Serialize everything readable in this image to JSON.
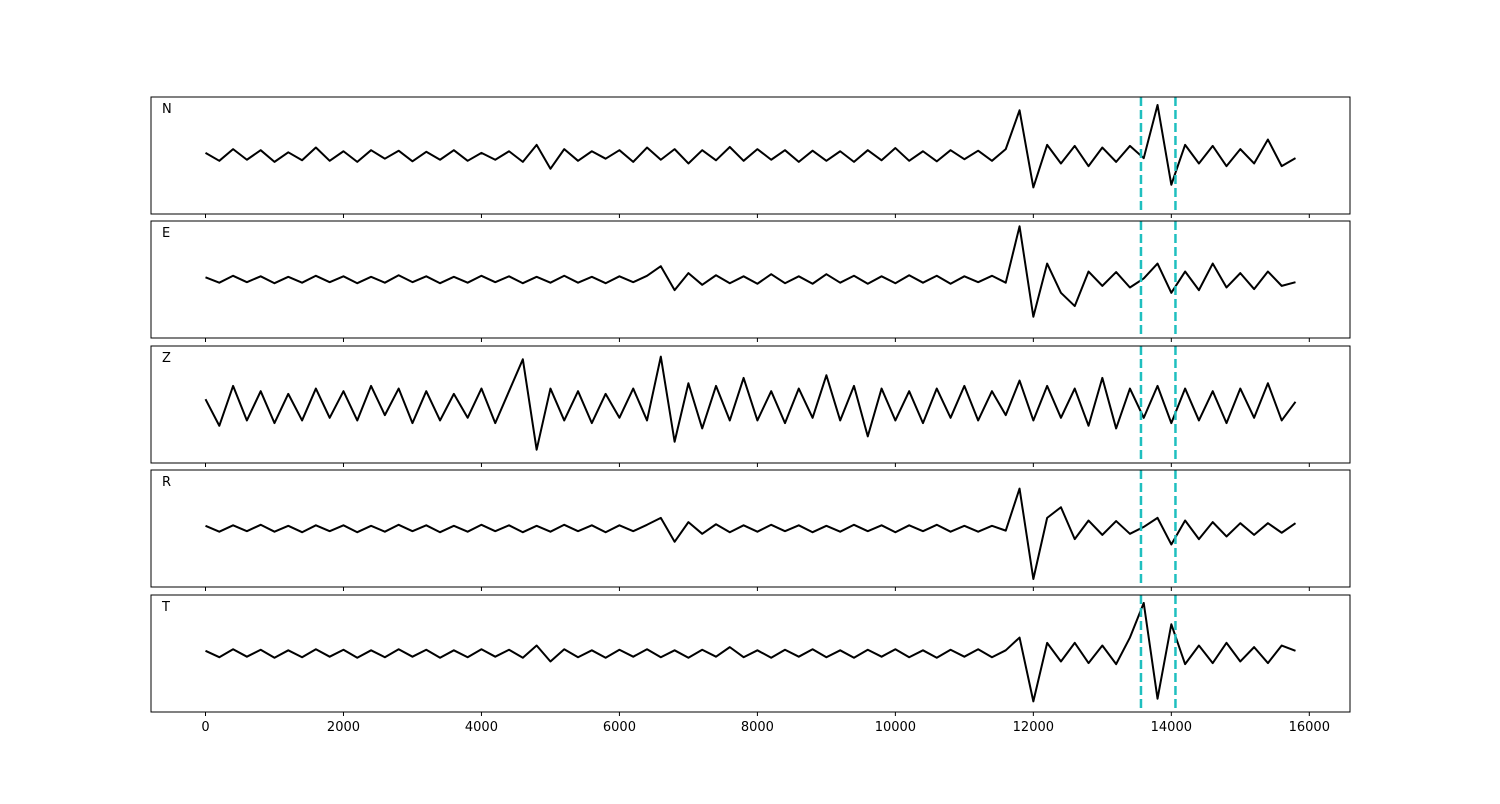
{
  "chart_data": {
    "type": "line",
    "x": [
      0,
      200,
      400,
      600,
      800,
      1000,
      1200,
      1400,
      1600,
      1800,
      2000,
      2200,
      2400,
      2600,
      2800,
      3000,
      3200,
      3400,
      3600,
      3800,
      4000,
      4200,
      4400,
      4600,
      4800,
      5000,
      5200,
      5400,
      5600,
      5800,
      6000,
      6200,
      6400,
      6600,
      6800,
      7000,
      7200,
      7400,
      7600,
      7800,
      8000,
      8200,
      8400,
      8600,
      8800,
      9000,
      9200,
      9400,
      9600,
      9800,
      10000,
      10200,
      10400,
      10600,
      10800,
      11000,
      11200,
      11400,
      11600,
      11800,
      12000,
      12200,
      12400,
      12600,
      12800,
      13000,
      13200,
      13400,
      13600,
      13800,
      14000,
      14200,
      14400,
      14600,
      14800,
      15000,
      15200,
      15400,
      15600,
      15800
    ],
    "xlim": [
      -790,
      16590
    ],
    "xticks": [
      0,
      2000,
      4000,
      6000,
      8000,
      10000,
      12000,
      14000,
      16000
    ],
    "ylim": [
      -1.1,
      1.1
    ],
    "vlines": [
      13560,
      14060
    ],
    "vline_color": "#1fbfbf",
    "vline_style": "dashed",
    "series": [
      {
        "name": "N",
        "color": "#000000",
        "values": [
          0.05,
          -0.1,
          0.12,
          -0.08,
          0.1,
          -0.12,
          0.06,
          -0.09,
          0.15,
          -0.1,
          0.08,
          -0.12,
          0.1,
          -0.06,
          0.09,
          -0.11,
          0.07,
          -0.08,
          0.1,
          -0.1,
          0.05,
          -0.08,
          0.08,
          -0.12,
          0.2,
          -0.25,
          0.12,
          -0.1,
          0.08,
          -0.06,
          0.1,
          -0.12,
          0.15,
          -0.08,
          0.12,
          -0.15,
          0.1,
          -0.09,
          0.16,
          -0.1,
          0.12,
          -0.08,
          0.1,
          -0.12,
          0.09,
          -0.1,
          0.08,
          -0.12,
          0.1,
          -0.09,
          0.14,
          -0.1,
          0.08,
          -0.11,
          0.1,
          -0.07,
          0.09,
          -0.1,
          0.12,
          0.85,
          -0.6,
          0.2,
          -0.15,
          0.18,
          -0.2,
          0.15,
          -0.12,
          0.18,
          -0.05,
          0.95,
          -0.55,
          0.2,
          -0.15,
          0.18,
          -0.2,
          0.12,
          -0.15,
          0.3,
          -0.2,
          -0.05
        ]
      },
      {
        "name": "E",
        "color": "#000000",
        "values": [
          0.04,
          -0.06,
          0.07,
          -0.05,
          0.06,
          -0.07,
          0.05,
          -0.06,
          0.07,
          -0.05,
          0.06,
          -0.07,
          0.05,
          -0.06,
          0.08,
          -0.05,
          0.06,
          -0.07,
          0.05,
          -0.06,
          0.07,
          -0.05,
          0.06,
          -0.07,
          0.05,
          -0.06,
          0.07,
          -0.06,
          0.05,
          -0.07,
          0.06,
          -0.05,
          0.07,
          0.25,
          -0.2,
          0.12,
          -0.1,
          0.08,
          -0.07,
          0.06,
          -0.08,
          0.1,
          -0.07,
          0.06,
          -0.08,
          0.1,
          -0.06,
          0.07,
          -0.08,
          0.06,
          -0.07,
          0.08,
          -0.06,
          0.07,
          -0.08,
          0.06,
          -0.05,
          0.07,
          -0.06,
          1.0,
          -0.7,
          0.3,
          -0.25,
          -0.5,
          0.15,
          -0.12,
          0.14,
          -0.15,
          0.02,
          0.3,
          -0.25,
          0.15,
          -0.2,
          0.3,
          -0.15,
          0.12,
          -0.18,
          0.15,
          -0.12,
          -0.05
        ]
      },
      {
        "name": "Z",
        "color": "#000000",
        "values": [
          0.1,
          -0.4,
          0.35,
          -0.3,
          0.25,
          -0.35,
          0.2,
          -0.3,
          0.3,
          -0.25,
          0.25,
          -0.3,
          0.35,
          -0.2,
          0.3,
          -0.35,
          0.25,
          -0.3,
          0.2,
          -0.25,
          0.3,
          -0.35,
          0.25,
          0.85,
          -0.85,
          0.3,
          -0.3,
          0.25,
          -0.35,
          0.2,
          -0.25,
          0.3,
          -0.3,
          0.9,
          -0.7,
          0.4,
          -0.45,
          0.35,
          -0.3,
          0.5,
          -0.3,
          0.25,
          -0.35,
          0.3,
          -0.25,
          0.55,
          -0.3,
          0.35,
          -0.6,
          0.3,
          -0.3,
          0.25,
          -0.35,
          0.3,
          -0.25,
          0.35,
          -0.3,
          0.25,
          -0.2,
          0.45,
          -0.3,
          0.35,
          -0.25,
          0.3,
          -0.4,
          0.5,
          -0.45,
          0.3,
          -0.25,
          0.35,
          -0.35,
          0.3,
          -0.3,
          0.25,
          -0.35,
          0.3,
          -0.25,
          0.4,
          -0.3,
          0.05
        ]
      },
      {
        "name": "R",
        "color": "#000000",
        "values": [
          0.05,
          -0.06,
          0.06,
          -0.05,
          0.07,
          -0.06,
          0.05,
          -0.07,
          0.06,
          -0.05,
          0.06,
          -0.07,
          0.05,
          -0.06,
          0.07,
          -0.05,
          0.06,
          -0.07,
          0.05,
          -0.06,
          0.07,
          -0.05,
          0.06,
          -0.07,
          0.05,
          -0.06,
          0.07,
          -0.05,
          0.06,
          -0.07,
          0.06,
          -0.05,
          0.07,
          0.2,
          -0.25,
          0.12,
          -0.1,
          0.08,
          -0.07,
          0.06,
          -0.06,
          0.07,
          -0.05,
          0.06,
          -0.07,
          0.05,
          -0.06,
          0.07,
          -0.05,
          0.06,
          -0.07,
          0.06,
          -0.05,
          0.07,
          -0.06,
          0.05,
          -0.06,
          0.05,
          -0.04,
          0.75,
          -0.95,
          0.2,
          0.4,
          -0.2,
          0.15,
          -0.12,
          0.14,
          -0.1,
          0.03,
          0.2,
          -0.3,
          0.15,
          -0.2,
          0.12,
          -0.15,
          0.1,
          -0.12,
          0.1,
          -0.08,
          0.1
        ]
      },
      {
        "name": "T",
        "color": "#000000",
        "values": [
          0.05,
          -0.07,
          0.08,
          -0.06,
          0.07,
          -0.08,
          0.06,
          -0.07,
          0.08,
          -0.06,
          0.07,
          -0.08,
          0.06,
          -0.07,
          0.08,
          -0.06,
          0.07,
          -0.08,
          0.06,
          -0.07,
          0.08,
          -0.06,
          0.07,
          -0.08,
          0.15,
          -0.15,
          0.08,
          -0.07,
          0.06,
          -0.08,
          0.07,
          -0.06,
          0.08,
          -0.07,
          0.06,
          -0.08,
          0.07,
          -0.06,
          0.12,
          -0.07,
          0.06,
          -0.08,
          0.07,
          -0.06,
          0.08,
          -0.07,
          0.06,
          -0.08,
          0.07,
          -0.06,
          0.08,
          -0.07,
          0.06,
          -0.08,
          0.07,
          -0.06,
          0.08,
          -0.07,
          0.06,
          0.3,
          -0.9,
          0.2,
          -0.15,
          0.2,
          -0.18,
          0.15,
          -0.2,
          0.3,
          0.95,
          -0.85,
          0.55,
          -0.2,
          0.15,
          -0.18,
          0.2,
          -0.15,
          0.12,
          -0.18,
          0.15,
          0.05
        ]
      }
    ]
  }
}
